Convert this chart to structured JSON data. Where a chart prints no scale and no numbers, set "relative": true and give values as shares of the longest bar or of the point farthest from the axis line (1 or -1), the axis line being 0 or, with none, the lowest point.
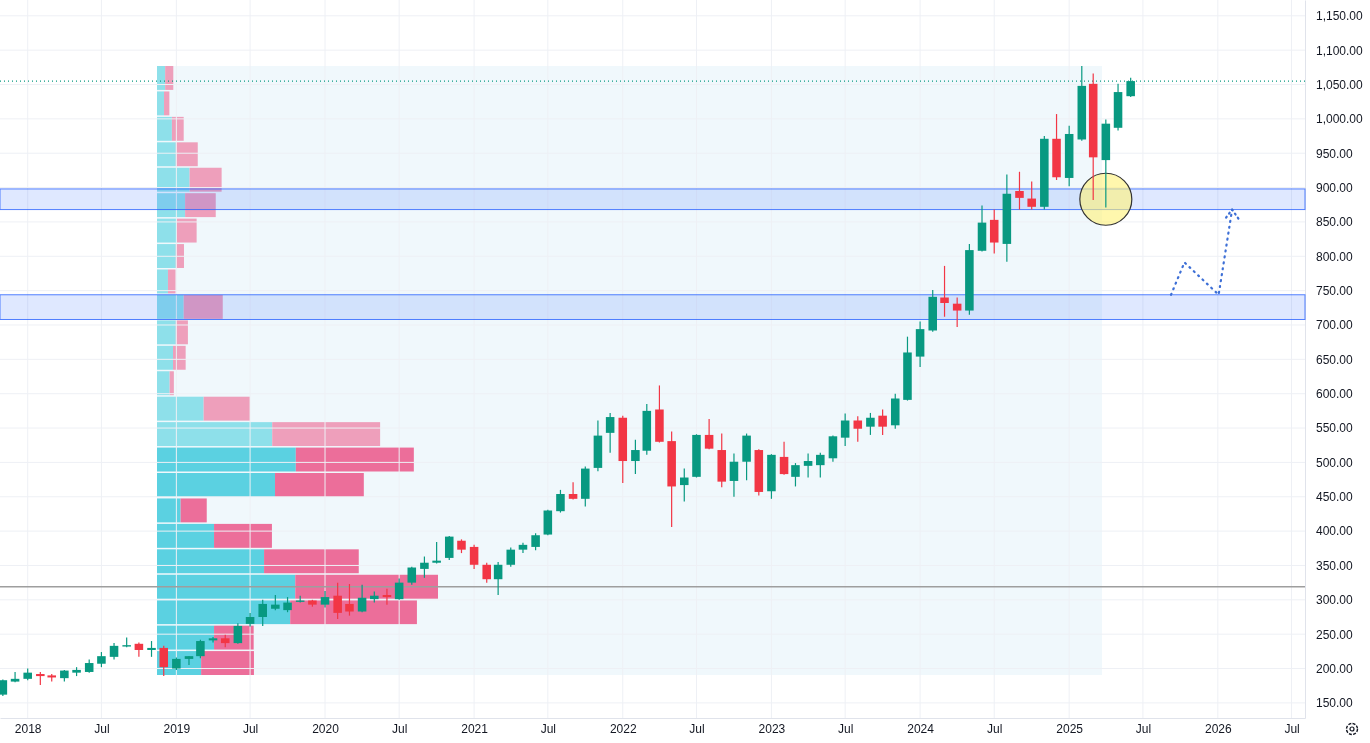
{
  "chart_data": [
    {
      "type": "candlestick",
      "x": [
        "2017-11",
        "2017-12",
        "2018-01",
        "2018-02",
        "2018-03",
        "2018-04",
        "2018-05",
        "2018-06",
        "2018-07",
        "2018-08",
        "2018-09",
        "2018-10",
        "2018-11",
        "2018-12",
        "2019-01",
        "2019-02",
        "2019-03",
        "2019-04",
        "2019-05",
        "2019-06",
        "2019-07",
        "2019-08",
        "2019-09",
        "2019-10",
        "2019-11",
        "2019-12",
        "2020-01",
        "2020-02",
        "2020-03",
        "2020-04",
        "2020-05",
        "2020-06",
        "2020-07",
        "2020-08",
        "2020-09",
        "2020-10",
        "2020-11",
        "2020-12",
        "2021-01",
        "2021-02",
        "2021-03",
        "2021-04",
        "2021-05",
        "2021-06",
        "2021-07",
        "2021-08",
        "2021-09",
        "2021-10",
        "2021-11",
        "2021-12",
        "2022-01",
        "2022-02",
        "2022-03",
        "2022-04",
        "2022-05",
        "2022-06",
        "2022-07",
        "2022-08",
        "2022-09",
        "2022-10",
        "2022-11",
        "2022-12",
        "2023-01",
        "2023-02",
        "2023-03",
        "2023-04",
        "2023-05",
        "2023-06",
        "2023-07",
        "2023-08",
        "2023-09",
        "2023-10",
        "2023-11",
        "2023-12",
        "2024-01",
        "2024-02",
        "2024-03",
        "2024-04",
        "2024-05",
        "2024-06",
        "2024-07",
        "2024-08",
        "2024-09",
        "2024-10",
        "2024-11",
        "2024-12",
        "2025-01",
        "2025-02",
        "2025-03",
        "2025-04",
        "2025-05",
        "2025-06"
      ],
      "ohlc": [
        [
          162,
          184,
          160,
          183
        ],
        [
          181,
          195,
          180,
          185
        ],
        [
          185,
          200,
          183,
          194
        ],
        [
          192,
          195,
          176,
          189
        ],
        [
          190,
          192,
          181,
          187
        ],
        [
          186,
          198,
          181,
          197
        ],
        [
          194,
          202,
          189,
          198
        ],
        [
          195,
          213,
          194,
          208
        ],
        [
          207,
          224,
          202,
          218
        ],
        [
          217,
          237,
          213,
          233
        ],
        [
          232,
          245,
          231,
          234
        ],
        [
          236,
          238,
          217,
          227
        ],
        [
          227,
          240,
          217,
          230
        ],
        [
          230,
          233,
          189,
          202
        ],
        [
          200,
          216,
          198,
          214
        ],
        [
          214,
          218,
          205,
          218
        ],
        [
          218,
          242,
          215,
          240
        ],
        [
          241,
          246,
          238,
          244
        ],
        [
          244,
          249,
          231,
          237
        ],
        [
          237,
          266,
          236,
          262
        ],
        [
          265,
          281,
          261,
          275
        ],
        [
          275,
          300,
          262,
          294
        ],
        [
          287,
          307,
          285,
          293
        ],
        [
          285,
          304,
          282,
          296
        ],
        [
          297,
          306,
          296,
          299
        ],
        [
          299,
          300,
          290,
          293
        ],
        [
          293,
          313,
          289,
          304
        ],
        [
          306,
          325,
          272,
          281
        ],
        [
          294,
          323,
          277,
          283
        ],
        [
          283,
          322,
          282,
          303
        ],
        [
          301,
          312,
          296,
          306
        ],
        [
          307,
          316,
          293,
          304
        ],
        [
          301,
          331,
          300,
          325
        ],
        [
          325,
          348,
          322,
          347
        ],
        [
          345,
          363,
          332,
          354
        ],
        [
          354,
          384,
          353,
          357
        ],
        [
          361,
          393,
          358,
          392
        ],
        [
          386,
          388,
          368,
          373
        ],
        [
          377,
          380,
          345,
          351
        ],
        [
          351,
          354,
          325,
          330
        ],
        [
          330,
          355,
          307,
          351
        ],
        [
          351,
          376,
          348,
          373
        ],
        [
          373,
          383,
          368,
          380
        ],
        [
          377,
          397,
          372,
          394
        ],
        [
          395,
          431,
          394,
          430
        ],
        [
          429,
          460,
          427,
          454
        ],
        [
          454,
          471,
          446,
          447
        ],
        [
          447,
          494,
          436,
          491
        ],
        [
          492,
          561,
          487,
          539
        ],
        [
          543,
          572,
          514,
          566
        ],
        [
          565,
          568,
          470,
          502
        ],
        [
          502,
          533,
          483,
          518
        ],
        [
          517,
          585,
          511,
          575
        ],
        [
          577,
          612,
          529,
          530
        ],
        [
          531,
          545,
          406,
          465
        ],
        [
          467,
          491,
          443,
          478
        ],
        [
          479,
          541,
          478,
          540
        ],
        [
          540,
          563,
          519,
          520
        ],
        [
          518,
          542,
          464,
          472
        ],
        [
          473,
          513,
          450,
          501
        ],
        [
          501,
          542,
          474,
          539
        ],
        [
          518,
          519,
          452,
          457
        ],
        [
          458,
          512,
          447,
          511
        ],
        [
          508,
          530,
          482,
          483
        ],
        [
          479,
          499,
          465,
          496
        ],
        [
          495,
          513,
          478,
          502
        ],
        [
          496,
          514,
          478,
          511
        ],
        [
          506,
          539,
          501,
          538
        ],
        [
          536,
          571,
          524,
          561
        ],
        [
          561,
          567,
          530,
          549
        ],
        [
          552,
          572,
          540,
          565
        ],
        [
          568,
          577,
          540,
          552
        ],
        [
          554,
          600,
          549,
          593
        ],
        [
          591,
          683,
          590,
          660
        ],
        [
          654,
          705,
          639,
          694
        ],
        [
          692,
          751,
          690,
          741
        ],
        [
          740,
          786,
          712,
          732
        ],
        [
          731,
          740,
          697,
          721
        ],
        [
          721,
          818,
          715,
          809
        ],
        [
          808,
          874,
          807,
          849
        ],
        [
          853,
          868,
          804,
          820
        ],
        [
          818,
          919,
          792,
          891
        ],
        [
          895,
          923,
          868,
          885
        ],
        [
          884,
          909,
          868,
          872
        ],
        [
          872,
          975,
          868,
          971
        ],
        [
          971,
          1007,
          911,
          915
        ],
        [
          914,
          990,
          902,
          978
        ],
        [
          970,
          1077,
          968,
          1048
        ],
        [
          1051,
          1066,
          882,
          944
        ],
        [
          940,
          999,
          871,
          993
        ],
        [
          987,
          1051,
          983,
          1039
        ],
        [
          1033,
          1060,
          1032,
          1055
        ]
      ],
      "colors": [
        "#089981",
        "#089981",
        "#089981",
        "#f23645",
        "#f23645",
        "#089981",
        "#089981",
        "#089981",
        "#089981",
        "#089981",
        "#089981",
        "#f23645",
        "#089981",
        "#f23645",
        "#089981",
        "#089981",
        "#089981",
        "#089981",
        "#f23645",
        "#089981",
        "#089981",
        "#089981",
        "#089981",
        "#089981",
        "#089981",
        "#f23645",
        "#089981",
        "#f23645",
        "#f23645",
        "#089981",
        "#089981",
        "#f23645",
        "#089981",
        "#089981",
        "#089981",
        "#089981",
        "#089981",
        "#f23645",
        "#f23645",
        "#f23645",
        "#089981",
        "#089981",
        "#089981",
        "#089981",
        "#089981",
        "#089981",
        "#f23645",
        "#089981",
        "#089981",
        "#089981",
        "#f23645",
        "#089981",
        "#089981",
        "#f23645",
        "#f23645",
        "#089981",
        "#089981",
        "#f23645",
        "#f23645",
        "#089981",
        "#089981",
        "#f23645",
        "#089981",
        "#f23645",
        "#089981",
        "#089981",
        "#089981",
        "#089981",
        "#089981",
        "#f23645",
        "#089981",
        "#f23645",
        "#089981",
        "#089981",
        "#089981",
        "#089981",
        "#f23645",
        "#f23645",
        "#089981",
        "#089981",
        "#f23645",
        "#089981",
        "#f23645",
        "#f23645",
        "#089981",
        "#f23645",
        "#089981",
        "#089981",
        "#f23645",
        "#089981",
        "#089981",
        "#089981"
      ],
      "xlim": [
        "2017-10-25",
        "2026-08-03"
      ],
      "xticks": [
        {
          "value": "2018-01",
          "label": "2018"
        },
        {
          "value": "2018-07",
          "label": "Jul"
        },
        {
          "value": "2019-01",
          "label": "2019"
        },
        {
          "value": "2019-07",
          "label": "Jul"
        },
        {
          "value": "2020-01",
          "label": "2020"
        },
        {
          "value": "2020-07",
          "label": "Jul"
        },
        {
          "value": "2021-01",
          "label": "2021"
        },
        {
          "value": "2021-07",
          "label": "Jul"
        },
        {
          "value": "2022-01",
          "label": "2022"
        },
        {
          "value": "2022-07",
          "label": "Jul"
        },
        {
          "value": "2023-01",
          "label": "2023"
        },
        {
          "value": "2023-07",
          "label": "Jul"
        },
        {
          "value": "2024-01",
          "label": "2024"
        },
        {
          "value": "2024-07",
          "label": "Jul"
        },
        {
          "value": "2025-01",
          "label": "2025"
        },
        {
          "value": "2025-07",
          "label": "Jul"
        },
        {
          "value": "2026-01",
          "label": "2026"
        },
        {
          "value": "2026-07",
          "label": "Jul"
        }
      ],
      "ylim": [
        128,
        1173
      ],
      "yticks": [
        {
          "value": 150,
          "label": "150.00"
        },
        {
          "value": 200,
          "label": "200.00"
        },
        {
          "value": 250,
          "label": "250.00"
        },
        {
          "value": 300,
          "label": "300.00"
        },
        {
          "value": 350,
          "label": "350.00"
        },
        {
          "value": 400,
          "label": "400.00"
        },
        {
          "value": 450,
          "label": "450.00"
        },
        {
          "value": 500,
          "label": "500.00"
        },
        {
          "value": 550,
          "label": "550.00"
        },
        {
          "value": 600,
          "label": "600.00"
        },
        {
          "value": 650,
          "label": "650.00"
        },
        {
          "value": 700,
          "label": "700.00"
        },
        {
          "value": 750,
          "label": "750.00"
        },
        {
          "value": 800,
          "label": "800.00"
        },
        {
          "value": 850,
          "label": "850.00"
        },
        {
          "value": 900,
          "label": "900.00"
        },
        {
          "value": 950,
          "label": "950.00"
        },
        {
          "value": 1000,
          "label": "1,000.00"
        },
        {
          "value": 1050,
          "label": "1,050.00"
        },
        {
          "value": 1100,
          "label": "1,100.00"
        },
        {
          "value": 1150,
          "label": "1,150.00"
        }
      ],
      "grid": true,
      "ref_lines": [
        {
          "axis": "y",
          "value": 1055,
          "color": "#089981",
          "line_style": "dotted"
        },
        {
          "axis": "y",
          "value": 319,
          "color": "#9e9e9e",
          "line_style": "solid"
        }
      ],
      "bands": [
        {
          "axis": "y",
          "from": 868,
          "to": 898,
          "color": "#2962ff"
        },
        {
          "axis": "y",
          "from": 708,
          "to": 744,
          "color": "#2962ff"
        }
      ]
    },
    {
      "type": "bar",
      "orientation": "horizontal",
      "stacked": true,
      "relative": true,
      "categories": [
        null,
        null,
        null,
        null,
        null,
        null,
        null,
        null,
        null,
        null,
        null,
        null,
        null,
        null,
        null,
        null,
        null,
        null,
        null,
        null,
        null,
        null,
        null,
        null
      ],
      "series": [
        {
          "colors": [
            "#8ee0ea",
            "#8ee0ea",
            "#8ee0ea",
            "#8ee0ea",
            "#8ee0ea",
            "#8ee0ea",
            "#8ee0ea",
            "#8ee0ea",
            "#8ee0ea",
            "#8ee0ea",
            "#8ee0ea",
            "#8ee0ea",
            "#8ee0ea",
            "#8ee0ea",
            "#8ee0ea",
            "#5bd1e1",
            "#5bd1e1",
            "#5bd1e1",
            "#5bd1e1",
            "#5bd1e1",
            "#5bd1e1",
            "#5bd1e1",
            "#5bd1e1",
            "#5bd1e1"
          ],
          "values": [
            0.029,
            0.025,
            0.053,
            0.067,
            0.116,
            0.1,
            0.071,
            0.067,
            0.039,
            0.095,
            0.067,
            0.057,
            0.045,
            0.166,
            0.41,
            0.494,
            0.42,
            0.084,
            0.203,
            0.381,
            0.492,
            0.474,
            0.203,
            0.157
          ]
        },
        {
          "colors": [
            "#ee9fbb",
            "#ee9fbb",
            "#ee9fbb",
            "#ee9fbb",
            "#ee9fbb",
            "#ee9fbb",
            "#ee9fbb",
            "#ee9fbb",
            "#ee9fbb",
            "#ee9fbb",
            "#ee9fbb",
            "#ee9fbb",
            "#ee9fbb",
            "#ee9fbb",
            "#ee9fbb",
            "#ec6e9a",
            "#ec6e9a",
            "#ec6e9a",
            "#ec6e9a",
            "#ec6e9a",
            "#ec6e9a",
            "#ec6e9a",
            "#ec6e9a",
            "#ec6e9a"
          ],
          "values": [
            0.029,
            0.019,
            0.042,
            0.078,
            0.114,
            0.109,
            0.07,
            0.029,
            0.027,
            0.139,
            0.043,
            0.045,
            0.015,
            0.165,
            0.384,
            0.42,
            0.316,
            0.093,
            0.206,
            0.337,
            0.508,
            0.451,
            0.141,
            0.188
          ]
        }
      ]
    }
  ]
}
